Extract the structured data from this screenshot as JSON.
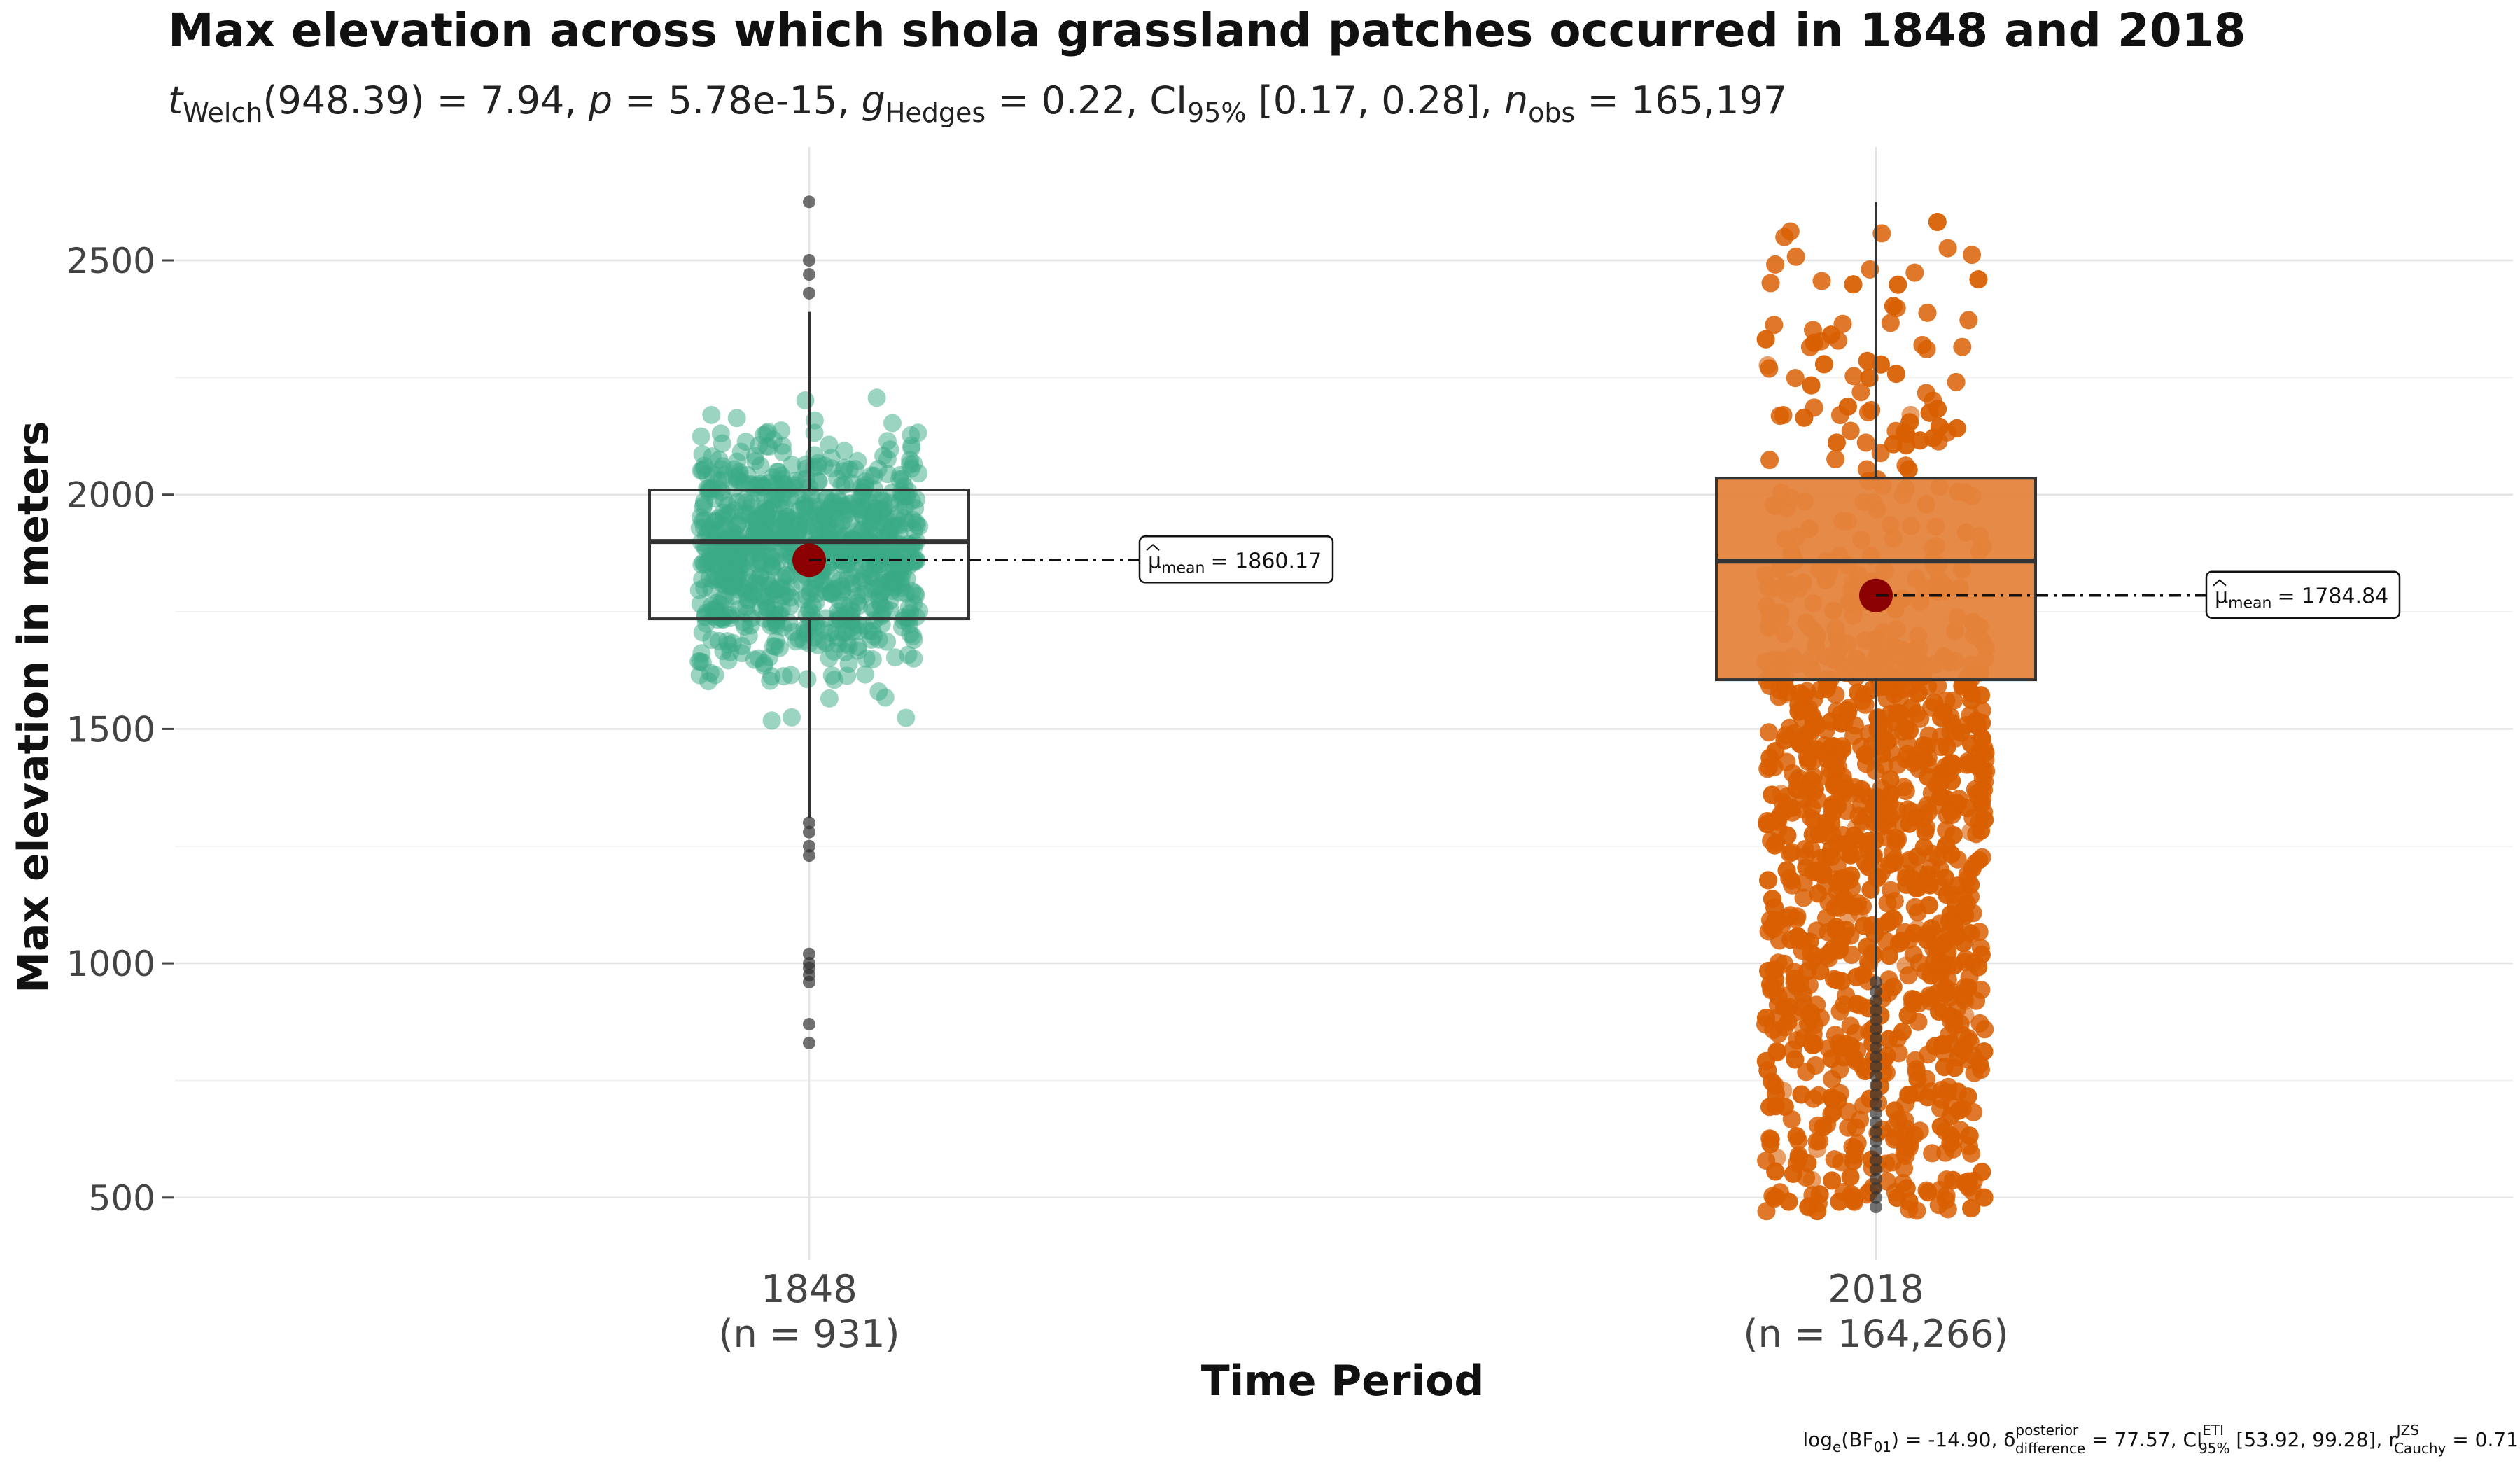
{
  "chart_data": {
    "type": "box-violin-jitter",
    "title": "Max elevation across which shola grassland patches occurred in 1848 and 2018",
    "subtitle": {
      "stat": "t",
      "stat_sub": "Welch",
      "df": "(948.39) = 7.94,",
      "p_label": "p",
      "p_value": "= 5.78e-15,",
      "g_label": "g",
      "g_sub": "Hedges",
      "g_value": "= 0.22,",
      "ci_label": "CI",
      "ci_sub": "95%",
      "ci_value": "[0.17, 0.28],",
      "n_label": "n",
      "n_sub": "obs",
      "n_value": "= 165,197"
    },
    "xlabel": "Time Period",
    "ylabel": "Max elevation in meters",
    "yticks": [
      500,
      1000,
      1500,
      2000,
      2500
    ],
    "ylim": [
      380,
      2700
    ],
    "groups": [
      {
        "name": "1848",
        "n_label": "(n = 931)",
        "color": "#3aa986",
        "box": {
          "q1": 1735,
          "median": 1900,
          "q3": 2010,
          "whisker_low": 1310,
          "whisker_high": 2390
        },
        "mean": 1860.17,
        "mean_label_prefix": "μ",
        "mean_label_sub": "mean",
        "mean_label_value": "= 1860.17",
        "outliers": [
          2625,
          2500,
          2470,
          2430,
          1300,
          1280,
          1250,
          1230,
          1020,
          1000,
          990,
          975,
          960,
          870,
          830
        ]
      },
      {
        "name": "2018",
        "n_label": "(n = 164,266)",
        "color": "#d95f02",
        "box": {
          "q1": 1605,
          "median": 1858,
          "q3": 2035,
          "whisker_low": 965,
          "whisker_high": 2625
        },
        "mean": 1784.84,
        "mean_label_prefix": "μ",
        "mean_label_sub": "mean",
        "mean_label_value": "= 1784.84",
        "outliers": [
          960,
          940,
          920,
          900,
          880,
          860,
          840,
          820,
          800,
          780,
          760,
          740,
          720,
          700,
          680,
          660,
          640,
          620,
          600,
          580,
          560,
          540,
          520,
          500,
          480
        ]
      }
    ],
    "mean_color": "#8b0000",
    "grid": true,
    "caption": {
      "a": "log",
      "a_sub": "e",
      "b": "(BF",
      "b_sub": "01",
      "c": ") = -14.90, δ",
      "c_sup": "posterior",
      "c_sub": "difference",
      "d": "= 77.57, CI",
      "d_sup": "ETI",
      "d_sub": "95%",
      "e": "[53.92, 99.28], r",
      "e_sup": "JZS",
      "e_sub": "Cauchy",
      "f": "= 0.71"
    }
  }
}
